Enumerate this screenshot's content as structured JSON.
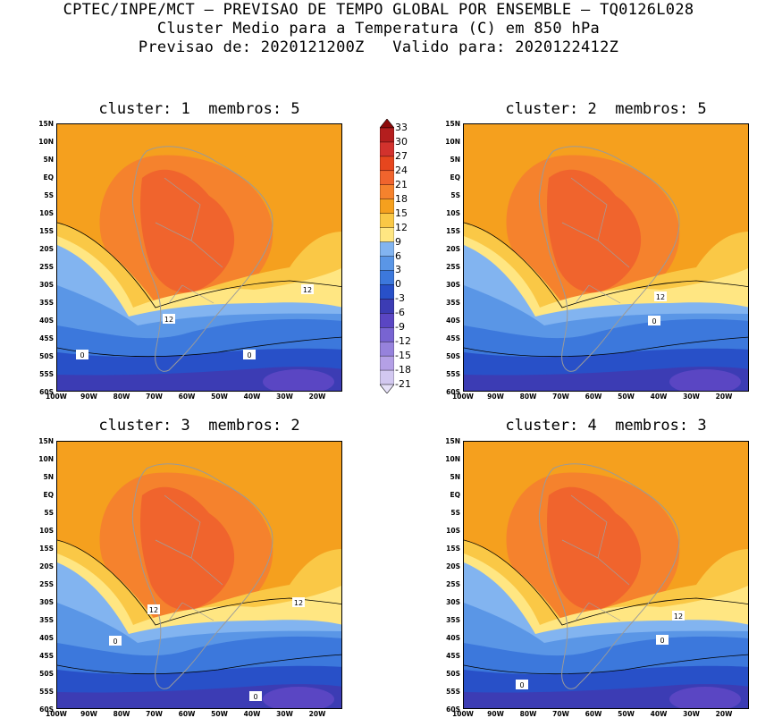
{
  "header": {
    "line1": "CPTEC/INPE/MCT – PREVISAO DE TEMPO GLOBAL POR ENSEMBLE – TQ0126L028",
    "line2": "Cluster Medio para a Temperatura (C) em 850 hPa",
    "line3": "Previsao de: 2020121200Z   Valido para: 2020122412Z"
  },
  "panels": [
    {
      "title": "cluster: 1  membros: 5",
      "contour_labels": [
        "12",
        "12",
        "0",
        "0"
      ]
    },
    {
      "title": "cluster: 2  membros: 5",
      "contour_labels": [
        "12",
        "0"
      ]
    },
    {
      "title": "cluster: 3  membros: 2",
      "contour_labels": [
        "12",
        "12",
        "0",
        "0"
      ]
    },
    {
      "title": "cluster: 4  membros: 3",
      "contour_labels": [
        "12",
        "0",
        "0"
      ]
    }
  ],
  "lat_labels": [
    "15N",
    "10N",
    "5N",
    "EQ",
    "5S",
    "10S",
    "15S",
    "20S",
    "25S",
    "30S",
    "35S",
    "40S",
    "45S",
    "50S",
    "55S",
    "60S"
  ],
  "lon_labels": [
    "100W",
    "90W",
    "80W",
    "70W",
    "60W",
    "50W",
    "40W",
    "30W",
    "20W"
  ],
  "colorbar": {
    "labels": [
      "33",
      "30",
      "27",
      "24",
      "21",
      "18",
      "15",
      "12",
      "9",
      "6",
      "3",
      "0",
      "-3",
      "-6",
      "-9",
      "-12",
      "-15",
      "-18",
      "-21"
    ],
    "colors": [
      "#8c0a0a",
      "#b41e1e",
      "#d2322d",
      "#e6461e",
      "#f0642d",
      "#f5822d",
      "#f5a01e",
      "#fac846",
      "#ffe682",
      "#82b4f0",
      "#5a96e6",
      "#3c78dc",
      "#2850c8",
      "#3c3cb4",
      "#5a46c3",
      "#7864d2",
      "#9682dc",
      "#b4a0e6",
      "#d2c8f0",
      "#e6e1f8"
    ]
  },
  "legend_colors": {
    "c33": "#8c0a0a",
    "c21": "#f0642d",
    "c18": "#f5822d",
    "c15": "#f5a01e",
    "c12": "#fac846",
    "c9": "#ffe682",
    "c6": "#82b4f0",
    "c3": "#5a96e6",
    "c0": "#3c78dc",
    "cm3": "#2850c8",
    "cm6": "#3c3cb4",
    "cm9": "#5a46c3",
    "cm12": "#7864d2"
  }
}
